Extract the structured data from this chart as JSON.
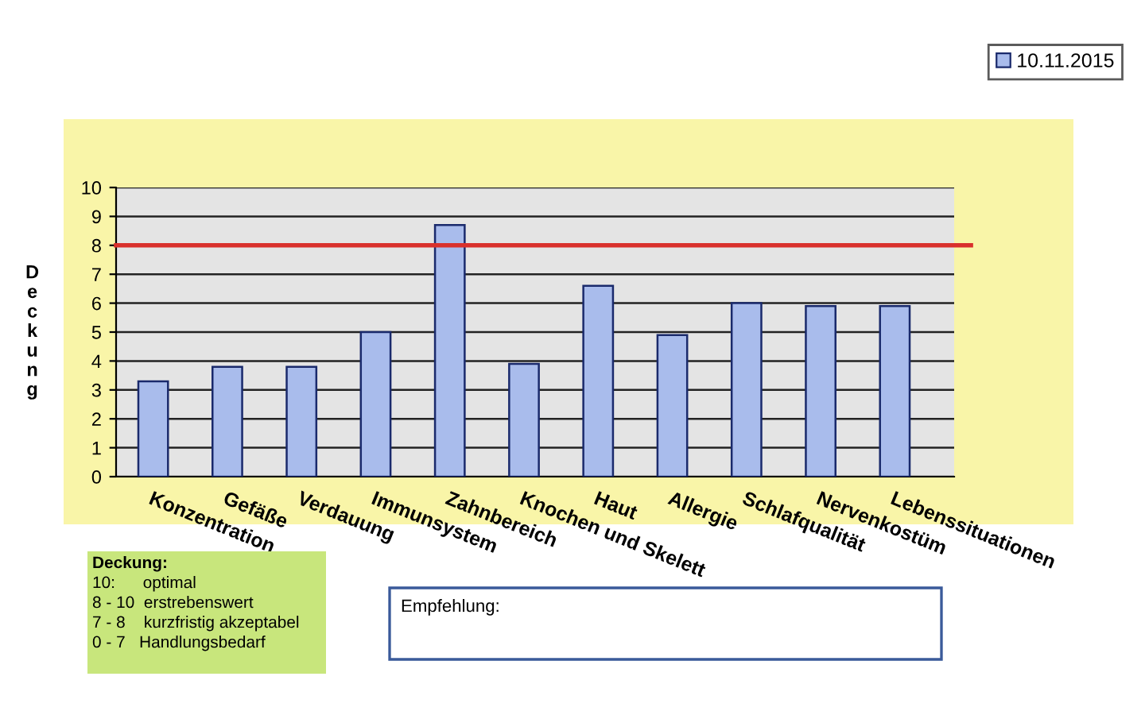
{
  "chart_data": {
    "type": "bar",
    "ylabel": "Deckung",
    "categories": [
      "Konzentration",
      "Gefäße",
      "Verdauung",
      "Immunsystem",
      "Zahnbereich",
      "Knochen und Skelett",
      "Haut",
      "Allergie",
      "Schlafqualität",
      "Nervenkostüm",
      "Lebenssituationen"
    ],
    "series": [
      {
        "name": "10.11.2015",
        "color": "#a9bcec",
        "values": [
          3.3,
          3.8,
          3.8,
          5.0,
          8.7,
          3.9,
          6.6,
          4.9,
          6.0,
          5.9,
          5.9
        ]
      }
    ],
    "ylim": [
      0,
      10
    ],
    "yticks": [
      0,
      1,
      2,
      3,
      4,
      5,
      6,
      7,
      8,
      9,
      10
    ],
    "grid": "y",
    "legend": "top right",
    "ref_lines": [
      {
        "axis": "y",
        "value": 8,
        "color": "#d9302c"
      }
    ],
    "annotations": [
      "Deckung:\n10:      optimal\n8 - 10  erstrebenswert\n7 - 8    kurzfristig akzeptabel\n0 - 7   Handlungsbedarf",
      "Empfehlung:"
    ]
  }
}
